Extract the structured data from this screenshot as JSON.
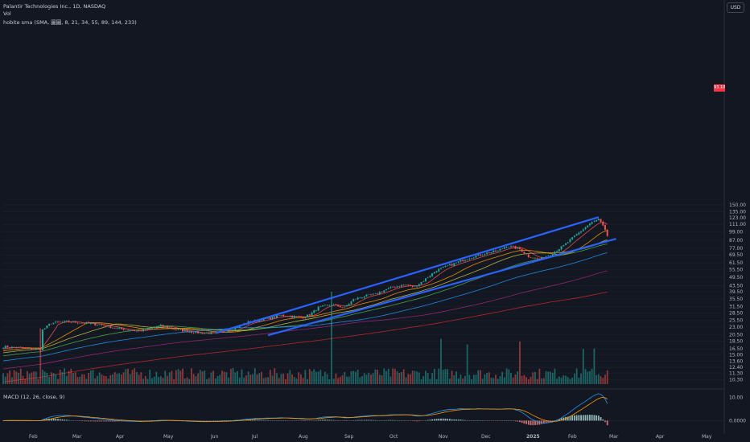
{
  "header": {
    "title": "Palantir Technologies Inc., 1D, NASDAQ",
    "volume_label": "Vol",
    "ma_label": "hobite sma (SMA, 圖圖, 8, 21, 34, 55, 89, 144, 233)",
    "currency": "USD",
    "macd_label": "MACD (12, 26, close, 9)"
  },
  "price_tag": "93.10",
  "colors": {
    "background": "#131722",
    "up": "#26a69a",
    "down": "#ef5350",
    "trendline": "#2962ff",
    "ma8": "#ef5350",
    "ma21": "#ff9800",
    "ma34": "#c9c341",
    "ma55": "#4caf50",
    "ma89": "#2196f3",
    "ma144": "#9c2777",
    "ma233": "#c62828",
    "macd": "#2196f3",
    "signal": "#ff9800"
  },
  "chart_data": {
    "type": "candlestick",
    "scale": "log",
    "x_labels": [
      "Feb",
      "Mar",
      "Apr",
      "May",
      "Jun",
      "Jul",
      "Aug",
      "Sep",
      "Oct",
      "Nov",
      "Dec",
      "2025",
      "Feb",
      "Mar",
      "Apr",
      "May"
    ],
    "y_ticks": [
      "150.00",
      "135.00",
      "123.00",
      "111.00",
      "99.00",
      "87.00",
      "77.00",
      "69.50",
      "61.50",
      "55.50",
      "49.50",
      "43.50",
      "39.50",
      "35.50",
      "31.50",
      "28.50",
      "25.50",
      "23.00",
      "20.50",
      "18.50",
      "16.50",
      "15.00",
      "13.60",
      "12.40",
      "11.30",
      "10.30"
    ],
    "y_tick_values": [
      150,
      135,
      123,
      111,
      99,
      87,
      77,
      69.5,
      61.5,
      55.5,
      49.5,
      43.5,
      39.5,
      35.5,
      31.5,
      28.5,
      25.5,
      23,
      20.5,
      18.5,
      16.5,
      15,
      13.6,
      12.4,
      11.3,
      10.3
    ],
    "price_anchors": [
      [
        0,
        17.0
      ],
      [
        14,
        16.5
      ],
      [
        17,
        16.4
      ],
      [
        18,
        22.0
      ],
      [
        22,
        24.5
      ],
      [
        30,
        25.0
      ],
      [
        40,
        24.2
      ],
      [
        45,
        23.8
      ],
      [
        52,
        22.5
      ],
      [
        62,
        21.6
      ],
      [
        72,
        23.5
      ],
      [
        80,
        22.0
      ],
      [
        90,
        21.0
      ],
      [
        98,
        21.0
      ],
      [
        104,
        22.2
      ],
      [
        112,
        24.8
      ],
      [
        120,
        26.0
      ],
      [
        127,
        27.5
      ],
      [
        133,
        27.0
      ],
      [
        137,
        26.8
      ],
      [
        140,
        27.8
      ],
      [
        144,
        31.0
      ],
      [
        150,
        32.5
      ],
      [
        156,
        31.0
      ],
      [
        160,
        35.0
      ],
      [
        165,
        37.0
      ],
      [
        170,
        38.0
      ],
      [
        175,
        41.0
      ],
      [
        180,
        43.0
      ],
      [
        184,
        44.0
      ],
      [
        188,
        42.5
      ],
      [
        192,
        47.0
      ],
      [
        198,
        55.0
      ],
      [
        205,
        60.0
      ],
      [
        212,
        66.0
      ],
      [
        220,
        71.0
      ],
      [
        226,
        74.0
      ],
      [
        230,
        80.0
      ],
      [
        236,
        76.0
      ],
      [
        240,
        68.0
      ],
      [
        245,
        65.0
      ],
      [
        250,
        70.0
      ],
      [
        256,
        80.0
      ],
      [
        262,
        95.0
      ],
      [
        268,
        112.0
      ],
      [
        272,
        120.0
      ],
      [
        274,
        108.0
      ],
      [
        276,
        93.1
      ]
    ],
    "moving_averages": [
      {
        "period": 8,
        "color_key": "ma8"
      },
      {
        "period": 21,
        "color_key": "ma21"
      },
      {
        "period": 34,
        "color_key": "ma34"
      },
      {
        "period": 55,
        "color_key": "ma55"
      },
      {
        "period": 89,
        "color_key": "ma89"
      },
      {
        "period": 144,
        "color_key": "ma144"
      },
      {
        "period": 233,
        "color_key": "ma233"
      }
    ],
    "trendlines": [
      {
        "from": [
          97,
          21.0
        ],
        "to": [
          272,
          124.0
        ]
      },
      {
        "from": [
          121,
          20.3
        ],
        "to": [
          280,
          89.0
        ]
      }
    ],
    "volume_spike_days": [
      17,
      150,
      200,
      212,
      236,
      265,
      270
    ],
    "macd_ticks": [
      "10.00",
      "0.0000"
    ],
    "macd_tick_values": [
      10,
      0
    ],
    "macd_range": [
      -3,
      13
    ]
  }
}
